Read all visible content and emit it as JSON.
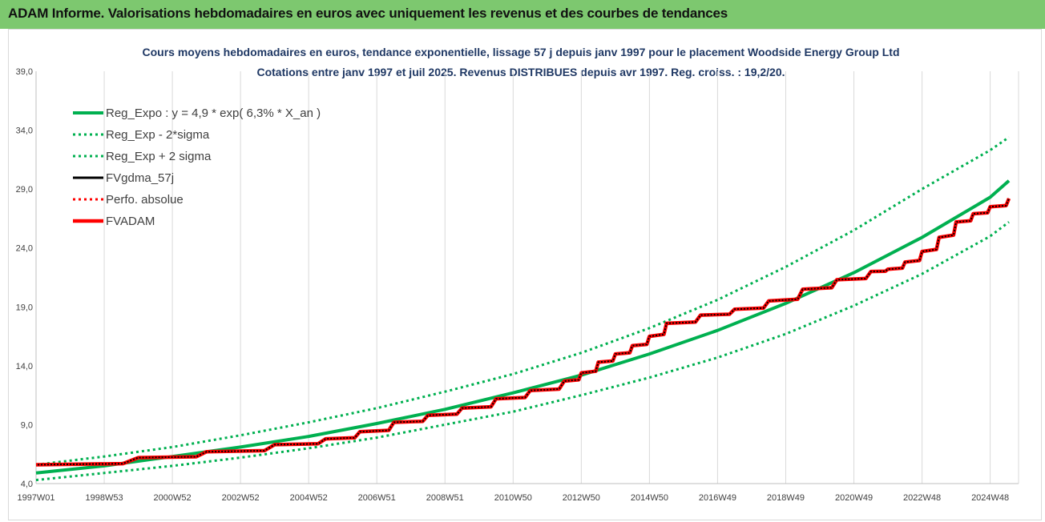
{
  "header": {
    "title": "ADAM Informe. Valorisations hebdomadaires en euros avec uniquement les revenus et des courbes de tendances"
  },
  "chart_data": {
    "type": "line",
    "title": "Cours moyens hebdomadaires en euros, tendance exponentielle, lissage 57 j depuis janv 1997 pour le placement Woodside Energy Group Ltd",
    "subtitle": "Cotations entre janv 1997 et juil 2025. Revenus DISTRIBUES depuis avr 1997. Reg. croiss. : 19,2/20.",
    "xlabel": "",
    "ylabel": "",
    "x_tick_labels": [
      "1997W01",
      "1998W53",
      "2000W52",
      "2002W52",
      "2004W52",
      "2006W51",
      "2008W51",
      "2010W50",
      "2012W50",
      "2014W50",
      "2016W49",
      "2018W49",
      "2020W49",
      "2022W48",
      "2024W48"
    ],
    "x_tick_years": [
      1997.0,
      1999.0,
      2001.0,
      2003.0,
      2005.0,
      2007.0,
      2009.0,
      2011.0,
      2013.0,
      2015.0,
      2017.0,
      2019.0,
      2021.0,
      2023.0,
      2025.0
    ],
    "y_ticks": [
      "4,0",
      "9,0",
      "14,0",
      "19,0",
      "24,0",
      "29,0",
      "34,0",
      "39,0"
    ],
    "xlim": [
      1997.0,
      2025.55
    ],
    "ylim": [
      4,
      39
    ],
    "legend_position": "top-left",
    "grid": {
      "x": true,
      "y": false
    },
    "series": [
      {
        "name": "Reg_Expo : y = 4,9 * exp( 6,3% *  X_an )",
        "color": "#00b050",
        "style": "solid",
        "x": [
          1997,
          1999,
          2001,
          2003,
          2005,
          2007,
          2009,
          2011,
          2013,
          2015,
          2017,
          2019,
          2021,
          2023,
          2025,
          2025.55
        ],
        "y": [
          4.9,
          5.5,
          6.3,
          7.1,
          8.0,
          9.1,
          10.3,
          11.7,
          13.2,
          15.0,
          17.0,
          19.3,
          21.9,
          24.9,
          28.3,
          29.7
        ]
      },
      {
        "name": "Reg_Exp - 2*sigma",
        "color": "#00b050",
        "style": "dotted",
        "x": [
          1997,
          1999,
          2001,
          2003,
          2005,
          2007,
          2009,
          2011,
          2013,
          2015,
          2017,
          2019,
          2021,
          2023,
          2025,
          2025.55
        ],
        "y": [
          4.3,
          4.9,
          5.5,
          6.2,
          7.0,
          7.9,
          9.0,
          10.1,
          11.5,
          13.0,
          14.7,
          16.7,
          19.1,
          21.8,
          25.0,
          26.2
        ]
      },
      {
        "name": "Reg_Exp + 2 sigma",
        "color": "#00b050",
        "style": "dotted",
        "x": [
          1997,
          1999,
          2001,
          2003,
          2005,
          2007,
          2009,
          2011,
          2013,
          2015,
          2017,
          2019,
          2021,
          2023,
          2025,
          2025.55
        ],
        "y": [
          5.6,
          6.3,
          7.1,
          8.1,
          9.2,
          10.4,
          11.8,
          13.3,
          15.1,
          17.2,
          19.6,
          22.4,
          25.5,
          29.0,
          32.3,
          33.4
        ]
      },
      {
        "name": "FVgdma_57j",
        "color": "#000000",
        "style": "solid",
        "x": [
          1997.0,
          2000.0,
          2002.0,
          2004.0,
          2005.5,
          2006.5,
          2007.5,
          2008.5,
          2009.5,
          2010.5,
          2011.5,
          2012.5,
          2013.0,
          2013.5,
          2014.0,
          2014.5,
          2015.0,
          2015.5,
          2016.5,
          2017.5,
          2018.5,
          2019.5,
          2020.5,
          2021.5,
          2022.0,
          2022.5,
          2023.0,
          2023.5,
          2024.0,
          2024.5,
          2025.0,
          2025.55
        ],
        "y": [
          5.6,
          6.2,
          6.7,
          7.3,
          7.8,
          8.4,
          9.2,
          9.8,
          10.4,
          11.2,
          11.9,
          12.7,
          13.4,
          14.3,
          15.0,
          15.7,
          16.5,
          17.6,
          18.3,
          18.8,
          19.5,
          20.5,
          21.3,
          22.0,
          22.2,
          22.8,
          23.7,
          24.9,
          26.2,
          26.9,
          27.5,
          28.2
        ]
      },
      {
        "name": "Perfo. absolue",
        "color": "#ff0000",
        "style": "dotted",
        "x": [
          1997.0,
          2000.0,
          2002.0,
          2004.0,
          2005.5,
          2006.5,
          2007.5,
          2008.5,
          2009.5,
          2010.5,
          2011.5,
          2012.5,
          2013.0,
          2013.5,
          2014.0,
          2014.5,
          2015.0,
          2015.5,
          2016.5,
          2017.5,
          2018.5,
          2019.5,
          2020.5,
          2021.5,
          2022.0,
          2022.5,
          2023.0,
          2023.5,
          2024.0,
          2024.5,
          2025.0,
          2025.55
        ],
        "y": [
          5.6,
          6.2,
          6.7,
          7.3,
          7.8,
          8.4,
          9.2,
          9.8,
          10.4,
          11.2,
          11.9,
          12.7,
          13.4,
          14.3,
          15.0,
          15.7,
          16.5,
          17.6,
          18.3,
          18.8,
          19.5,
          20.5,
          21.3,
          22.0,
          22.2,
          22.8,
          23.7,
          24.9,
          26.2,
          26.9,
          27.5,
          28.2
        ]
      },
      {
        "name": "FVADAM",
        "color": "#ff0000",
        "style": "solid",
        "x": [
          1997.0,
          2000.0,
          2002.0,
          2004.0,
          2005.5,
          2006.5,
          2007.5,
          2008.5,
          2009.5,
          2010.5,
          2011.5,
          2012.5,
          2013.0,
          2013.5,
          2014.0,
          2014.5,
          2015.0,
          2015.5,
          2016.5,
          2017.5,
          2018.5,
          2019.5,
          2020.5,
          2021.5,
          2022.0,
          2022.5,
          2023.0,
          2023.5,
          2024.0,
          2024.5,
          2025.0,
          2025.55
        ],
        "y": [
          5.6,
          6.2,
          6.7,
          7.3,
          7.8,
          8.4,
          9.2,
          9.8,
          10.4,
          11.2,
          11.9,
          12.7,
          13.4,
          14.3,
          15.0,
          15.7,
          16.5,
          17.6,
          18.3,
          18.8,
          19.5,
          20.5,
          21.3,
          22.0,
          22.2,
          22.8,
          23.7,
          24.9,
          26.2,
          26.9,
          27.5,
          28.2
        ]
      }
    ]
  }
}
